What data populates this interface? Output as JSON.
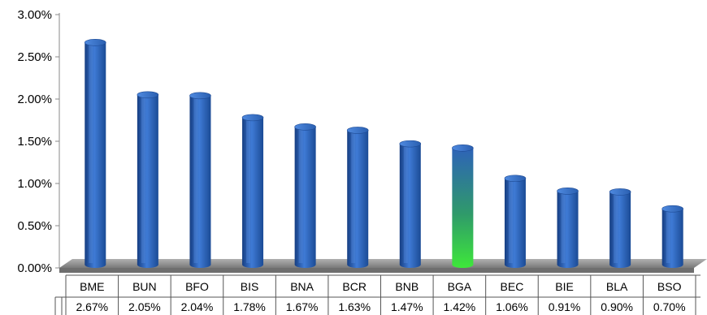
{
  "chart_data": {
    "type": "bar",
    "title": "",
    "xlabel": "",
    "ylabel": "",
    "categories": [
      "BME",
      "BUN",
      "BFO",
      "BIS",
      "BNA",
      "BCR",
      "BNB",
      "BGA",
      "BEC",
      "BIE",
      "BLA",
      "BSO"
    ],
    "values": [
      2.67,
      2.05,
      2.04,
      1.78,
      1.67,
      1.63,
      1.47,
      1.42,
      1.06,
      0.91,
      0.9,
      0.7
    ],
    "value_labels": [
      "2.67%",
      "2.05%",
      "2.04%",
      "1.78%",
      "1.67%",
      "1.63%",
      "1.47%",
      "1.42%",
      "1.06%",
      "0.91%",
      "0.90%",
      "0.70%"
    ],
    "ylim": [
      0,
      3.0
    ],
    "yticks": [
      0,
      0.5,
      1.0,
      1.5,
      2.0,
      2.5,
      3.0
    ],
    "ytick_labels": [
      "0.00%",
      "0.50%",
      "1.00%",
      "1.50%",
      "2.00%",
      "2.50%",
      "3.00%"
    ],
    "highlight_category": "BGA",
    "colors": {
      "bar": "#2e63b8",
      "highlight": "#3ed33a",
      "floor": "#8a8a8a"
    },
    "grid": false,
    "legend": "none",
    "data_table": true
  }
}
